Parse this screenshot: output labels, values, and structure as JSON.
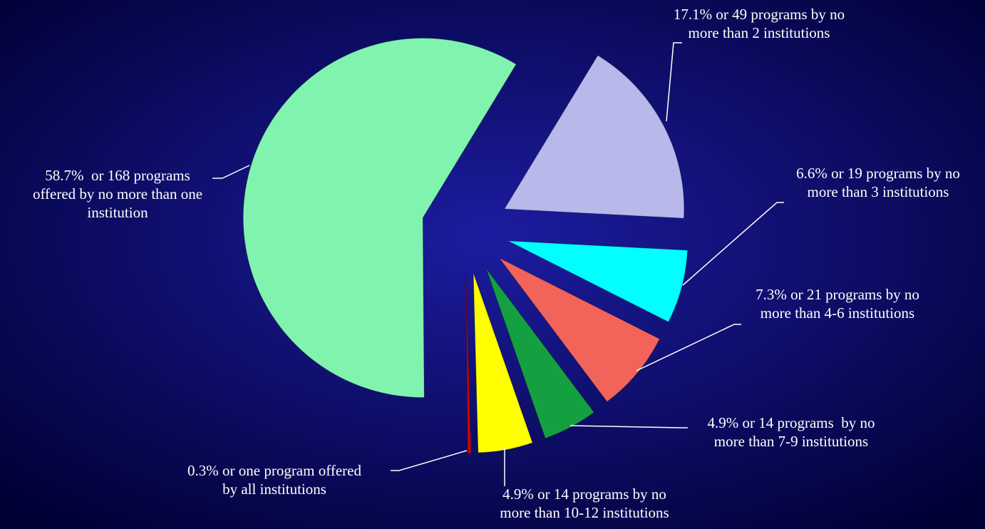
{
  "chart_data": {
    "type": "pie",
    "values": [
      17.1,
      6.6,
      7.3,
      4.9,
      4.9,
      0.3,
      58.7
    ],
    "value_labels": [
      "17.1% or 49 programs by no more than 2 institutions",
      "6.6% or 19 programs by no more than 3 institutions",
      "7.3% or 21 programs by no more than 4-6 institutions",
      "4.9% or 14 programs  by no more than 7-9 institutions",
      "4.9% or 14 programs by no more than 10-12 institutions",
      "0.3% or one program offered by all institutions",
      "58.7%  or 168 programs offered by no more than one institution"
    ],
    "colors": [
      "#b8b8ea",
      "#00ffff",
      "#f2645a",
      "#14a040",
      "#ffff00",
      "#d00000",
      "#80f4ae"
    ]
  }
}
